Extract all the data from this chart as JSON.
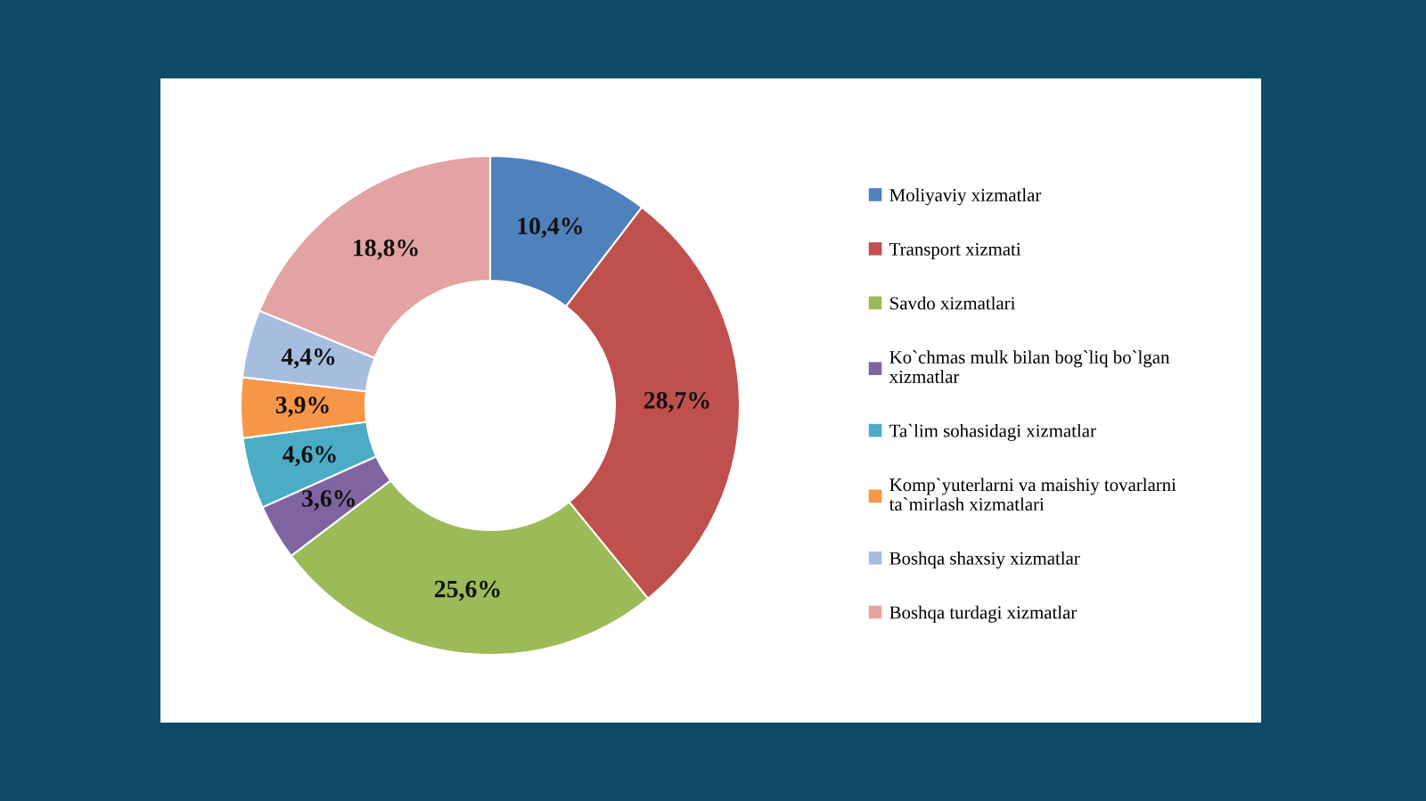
{
  "chart_data": {
    "type": "donut",
    "categories": [
      "Moliyaviy xizmatlar",
      "Transport xizmati",
      "Savdo xizmatlari",
      "Ko`chmas mulk bilan bog`liq bo`lgan\nxizmatlar",
      "Ta`lim sohasidagi xizmatlar",
      "Komp`yuterlarni va maishiy tovarlarni\nta`mirlash xizmatlari",
      "Boshqa shaxsiy xizmatlar",
      "Boshqa turdagi xizmatlar"
    ],
    "values": [
      10.4,
      28.7,
      25.6,
      3.6,
      4.6,
      3.9,
      4.4,
      18.8
    ],
    "value_labels": [
      "10,4%",
      "28,7%",
      "25,6%",
      "3,6%",
      "4,6%",
      "3,9%",
      "4,4%",
      "18,8%"
    ],
    "colors": [
      "#4f81bd",
      "#c0504d",
      "#9bbb59",
      "#8064a2",
      "#4bacc6",
      "#f79646",
      "#a7bde0",
      "#e3a3a3"
    ],
    "legend": "right"
  }
}
